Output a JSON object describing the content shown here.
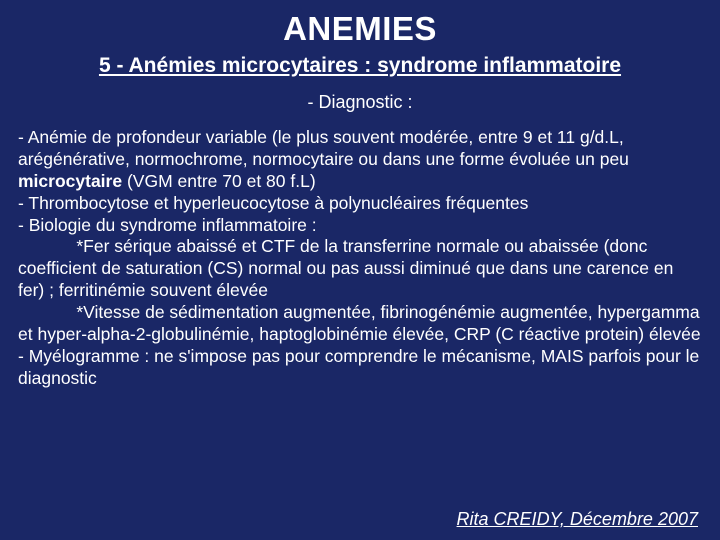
{
  "colors": {
    "background": "#1a2766",
    "text": "#ffffff"
  },
  "typography": {
    "family": "Comic Sans MS",
    "title_size_pt": 33,
    "subtitle_size_pt": 21,
    "section_size_pt": 18,
    "body_size_pt": 17.5,
    "footer_size_pt": 18
  },
  "title": "ANEMIES",
  "subtitle": "5 - Anémies microcytaires : syndrome inflammatoire",
  "section_label": "- Diagnostic :",
  "body_pre": "- Anémie de profondeur variable (le plus souvent modérée, entre 9 et 11 g/d.L, arégénérative, normochrome, normocytaire ou dans une forme évoluée un peu ",
  "body_bold": "microcytaire",
  "body_post": " (VGM entre 70 et 80 f.L)\n- Thrombocytose et hyperleucocytose à polynucléaires fréquentes\n- Biologie du syndrome inflammatoire :\n            *Fer sérique abaissé et CTF de la transferrine normale ou abaissée (donc coefficient de saturation (CS) normal ou pas aussi diminué que dans une carence en fer) ; ferritinémie souvent élevée\n            *Vitesse de sédimentation augmentée, fibrinogénémie augmentée, hypergamma et hyper-alpha-2-globulinémie, haptoglobinémie élevée, CRP (C réactive protein) élevée\n- Myélogramme : ne s'impose pas pour comprendre le mécanisme, MAIS parfois pour le diagnostic",
  "footer": "Rita CREIDY, Décembre 2007"
}
